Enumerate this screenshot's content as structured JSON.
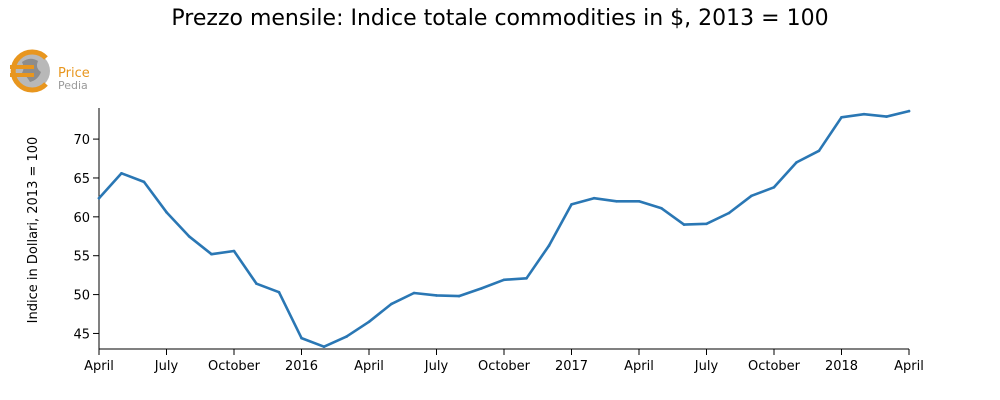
{
  "chart_data": {
    "type": "line",
    "title": "Prezzo mensile: Indice totale commodities in $, 2013 = 100",
    "ylabel": "Indice in Dollari, 2013 = 100",
    "xlabel": "",
    "x": [
      "2015-04",
      "2015-05",
      "2015-06",
      "2015-07",
      "2015-08",
      "2015-09",
      "2015-10",
      "2015-11",
      "2015-12",
      "2016-01",
      "2016-02",
      "2016-03",
      "2016-04",
      "2016-05",
      "2016-06",
      "2016-07",
      "2016-08",
      "2016-09",
      "2016-10",
      "2016-11",
      "2016-12",
      "2017-01",
      "2017-02",
      "2017-03",
      "2017-04",
      "2017-05",
      "2017-06",
      "2017-07",
      "2017-08",
      "2017-09",
      "2017-10",
      "2017-11",
      "2017-12",
      "2018-01",
      "2018-02",
      "2018-03",
      "2018-04"
    ],
    "series": [
      {
        "values": [
          62.4,
          65.6,
          64.5,
          60.6,
          57.5,
          55.2,
          55.6,
          51.4,
          50.3,
          44.4,
          43.3,
          44.6,
          46.5,
          48.8,
          50.2,
          49.9,
          49.8,
          50.8,
          51.9,
          52.1,
          56.3,
          61.6,
          62.4,
          62.0,
          62.0,
          61.1,
          59.0,
          59.1,
          60.5,
          62.7,
          63.8,
          67.0,
          68.5,
          72.8,
          73.2,
          72.9,
          73.6
        ],
        "color": "#2a77b4"
      }
    ],
    "ylim": [
      43,
      74
    ],
    "yticks": [
      45,
      50,
      55,
      60,
      65,
      70
    ],
    "xticks": [
      {
        "x": "2015-04",
        "label": "April"
      },
      {
        "x": "2015-07",
        "label": "July"
      },
      {
        "x": "2015-10",
        "label": "October"
      },
      {
        "x": "2016-01",
        "label": "2016"
      },
      {
        "x": "2016-04",
        "label": "April"
      },
      {
        "x": "2016-07",
        "label": "July"
      },
      {
        "x": "2016-10",
        "label": "October"
      },
      {
        "x": "2017-01",
        "label": "2017"
      },
      {
        "x": "2017-04",
        "label": "April"
      },
      {
        "x": "2017-07",
        "label": "July"
      },
      {
        "x": "2017-10",
        "label": "October"
      },
      {
        "x": "2018-01",
        "label": "2018"
      },
      {
        "x": "2018-04",
        "label": "April"
      }
    ],
    "grid": false,
    "legend": "none"
  },
  "logo": {
    "line1": "Price",
    "line2": "Pedia",
    "accent": "#e8961e",
    "secondary": "#9a9a9a"
  }
}
